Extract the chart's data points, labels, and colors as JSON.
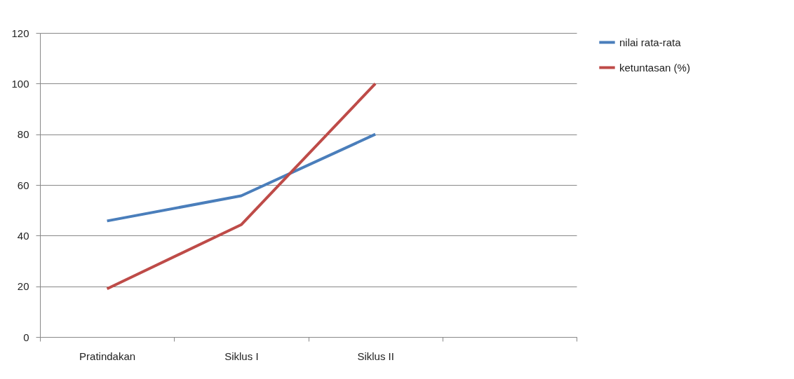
{
  "chart_data": {
    "type": "line",
    "categories": [
      "Pratindakan",
      "Siklus I",
      "Siklus II",
      null
    ],
    "series": [
      {
        "name": "nilai rata-rata",
        "color": "#4a7ebb",
        "values": [
          45.8,
          55.7,
          80,
          null
        ]
      },
      {
        "name": "ketuntasan (%)",
        "color": "#be4b48",
        "values": [
          19,
          44.3,
          100,
          null
        ]
      }
    ],
    "ylim": [
      0,
      120
    ],
    "yticks": [
      0,
      20,
      40,
      60,
      80,
      100,
      120
    ],
    "grid": "y",
    "legend": "right",
    "marker": "none",
    "line_style": "solid"
  }
}
